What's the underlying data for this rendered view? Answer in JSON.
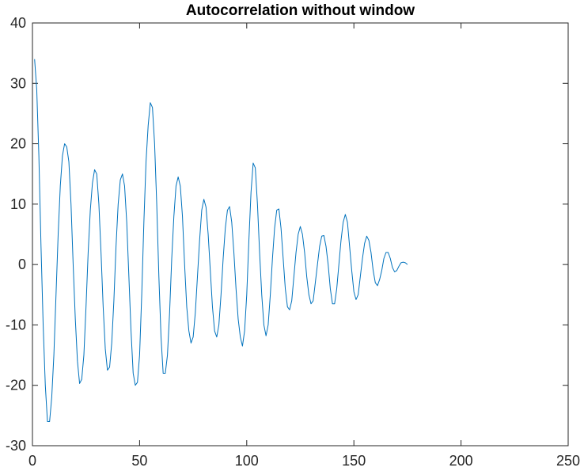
{
  "chart_data": {
    "type": "line",
    "title": "Autocorrelation without window",
    "xlabel": "",
    "ylabel": "",
    "xlim": [
      0,
      250
    ],
    "ylim": [
      -30,
      40
    ],
    "xticks": [
      0,
      50,
      100,
      150,
      200,
      250
    ],
    "yticks": [
      -30,
      -20,
      -10,
      0,
      10,
      20,
      30,
      40
    ],
    "grid": false,
    "legend": "none",
    "line_color": "#0072BD",
    "series": [
      {
        "points": [
          [
            1,
            34
          ],
          [
            2,
            29
          ],
          [
            3,
            18
          ],
          [
            4,
            3
          ],
          [
            5,
            -10
          ],
          [
            6,
            -20
          ],
          [
            7,
            -26
          ],
          [
            8,
            -26
          ],
          [
            9,
            -22
          ],
          [
            10,
            -15
          ],
          [
            11,
            -5
          ],
          [
            12,
            5
          ],
          [
            13,
            13
          ],
          [
            14,
            18
          ],
          [
            15,
            20
          ],
          [
            16,
            19.5
          ],
          [
            17,
            17
          ],
          [
            18,
            10
          ],
          [
            19,
            0
          ],
          [
            20,
            -9
          ],
          [
            21,
            -16
          ],
          [
            22,
            -19.7
          ],
          [
            23,
            -19
          ],
          [
            24,
            -15
          ],
          [
            25,
            -7
          ],
          [
            26,
            2
          ],
          [
            27,
            9
          ],
          [
            28,
            13.5
          ],
          [
            29,
            15.7
          ],
          [
            30,
            15
          ],
          [
            31,
            10
          ],
          [
            32,
            2
          ],
          [
            33,
            -7
          ],
          [
            34,
            -14
          ],
          [
            35,
            -17.5
          ],
          [
            36,
            -17
          ],
          [
            37,
            -13
          ],
          [
            38,
            -6
          ],
          [
            39,
            3
          ],
          [
            40,
            10
          ],
          [
            41,
            14
          ],
          [
            42,
            15
          ],
          [
            43,
            13
          ],
          [
            44,
            7
          ],
          [
            45,
            -2
          ],
          [
            46,
            -11
          ],
          [
            47,
            -18
          ],
          [
            48,
            -20
          ],
          [
            49,
            -19.5
          ],
          [
            50,
            -15
          ],
          [
            51,
            -5
          ],
          [
            52,
            7
          ],
          [
            53,
            17
          ],
          [
            54,
            23
          ],
          [
            55,
            26.8
          ],
          [
            56,
            26
          ],
          [
            57,
            20
          ],
          [
            58,
            10
          ],
          [
            59,
            -2
          ],
          [
            60,
            -12
          ],
          [
            61,
            -18
          ],
          [
            62,
            -18
          ],
          [
            63,
            -15
          ],
          [
            64,
            -8
          ],
          [
            65,
            1
          ],
          [
            66,
            8
          ],
          [
            67,
            13
          ],
          [
            68,
            14.5
          ],
          [
            69,
            13
          ],
          [
            70,
            8
          ],
          [
            71,
            0
          ],
          [
            72,
            -7
          ],
          [
            73,
            -11
          ],
          [
            74,
            -13
          ],
          [
            75,
            -12
          ],
          [
            76,
            -8
          ],
          [
            77,
            -2
          ],
          [
            78,
            4
          ],
          [
            79,
            9
          ],
          [
            80,
            10.8
          ],
          [
            81,
            9.5
          ],
          [
            82,
            5
          ],
          [
            83,
            -1
          ],
          [
            84,
            -7
          ],
          [
            85,
            -11
          ],
          [
            86,
            -12
          ],
          [
            87,
            -10
          ],
          [
            88,
            -5
          ],
          [
            89,
            1
          ],
          [
            90,
            6
          ],
          [
            91,
            9
          ],
          [
            92,
            9.6
          ],
          [
            93,
            7
          ],
          [
            94,
            2
          ],
          [
            95,
            -4
          ],
          [
            96,
            -9
          ],
          [
            97,
            -12
          ],
          [
            98,
            -13.5
          ],
          [
            99,
            -11
          ],
          [
            100,
            -5
          ],
          [
            101,
            4
          ],
          [
            102,
            12
          ],
          [
            103,
            16.8
          ],
          [
            104,
            16
          ],
          [
            105,
            10
          ],
          [
            106,
            2
          ],
          [
            107,
            -5
          ],
          [
            108,
            -10
          ],
          [
            109,
            -11.8
          ],
          [
            110,
            -10
          ],
          [
            111,
            -5
          ],
          [
            112,
            1
          ],
          [
            113,
            6
          ],
          [
            114,
            9
          ],
          [
            115,
            9.2
          ],
          [
            116,
            6
          ],
          [
            117,
            1
          ],
          [
            118,
            -4
          ],
          [
            119,
            -7
          ],
          [
            120,
            -7.5
          ],
          [
            121,
            -6
          ],
          [
            122,
            -2
          ],
          [
            123,
            2
          ],
          [
            124,
            5
          ],
          [
            125,
            6.3
          ],
          [
            126,
            5
          ],
          [
            127,
            2
          ],
          [
            128,
            -2
          ],
          [
            129,
            -5
          ],
          [
            130,
            -6.5
          ],
          [
            131,
            -6
          ],
          [
            132,
            -3
          ],
          [
            133,
            0
          ],
          [
            134,
            3
          ],
          [
            135,
            4.7
          ],
          [
            136,
            4.8
          ],
          [
            137,
            3
          ],
          [
            138,
            0
          ],
          [
            139,
            -4
          ],
          [
            140,
            -6.5
          ],
          [
            141,
            -6.5
          ],
          [
            142,
            -4
          ],
          [
            143,
            0
          ],
          [
            144,
            4
          ],
          [
            145,
            7
          ],
          [
            146,
            8.3
          ],
          [
            147,
            7
          ],
          [
            148,
            3
          ],
          [
            149,
            -1
          ],
          [
            150,
            -4.5
          ],
          [
            151,
            -5.8
          ],
          [
            152,
            -5
          ],
          [
            153,
            -2
          ],
          [
            154,
            1
          ],
          [
            155,
            3.5
          ],
          [
            156,
            4.7
          ],
          [
            157,
            4
          ],
          [
            158,
            2
          ],
          [
            159,
            -1
          ],
          [
            160,
            -3
          ],
          [
            161,
            -3.5
          ],
          [
            162,
            -2.5
          ],
          [
            163,
            -1
          ],
          [
            164,
            1
          ],
          [
            165,
            2
          ],
          [
            166,
            2
          ],
          [
            167,
            1
          ],
          [
            168,
            -0.5
          ],
          [
            169,
            -1.2
          ],
          [
            170,
            -1
          ],
          [
            171,
            -0.3
          ],
          [
            172,
            0.3
          ],
          [
            173,
            0.4
          ],
          [
            174,
            0.3
          ],
          [
            175,
            0
          ]
        ]
      }
    ]
  }
}
